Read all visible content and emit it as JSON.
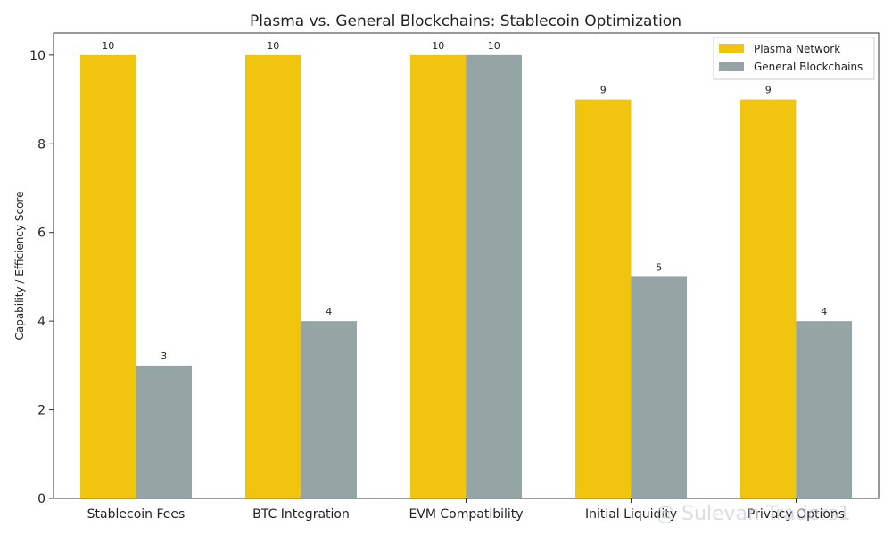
{
  "chart_data": {
    "type": "bar",
    "title": "Plasma vs. General Blockchains: Stablecoin Optimization",
    "xlabel": "",
    "ylabel": "Capability / Efficiency Score",
    "categories": [
      "Stablecoin Fees",
      "BTC Integration",
      "EVM Compatibility",
      "Initial Liquidity",
      "Privacy Options"
    ],
    "series": [
      {
        "name": "Plasma Network",
        "values": [
          10,
          10,
          10,
          9,
          9
        ],
        "color": "#f1c40f"
      },
      {
        "name": "General Blockchains",
        "values": [
          3,
          4,
          10,
          5,
          4
        ],
        "color": "#95a5a6"
      }
    ],
    "ylim": [
      0,
      10.5
    ],
    "yticks": [
      "0",
      "2",
      "4",
      "6",
      "8",
      "10"
    ],
    "grid": false,
    "legend_position": "top-right",
    "data_labels": true
  },
  "watermark": "@ Sulevan Traders1"
}
